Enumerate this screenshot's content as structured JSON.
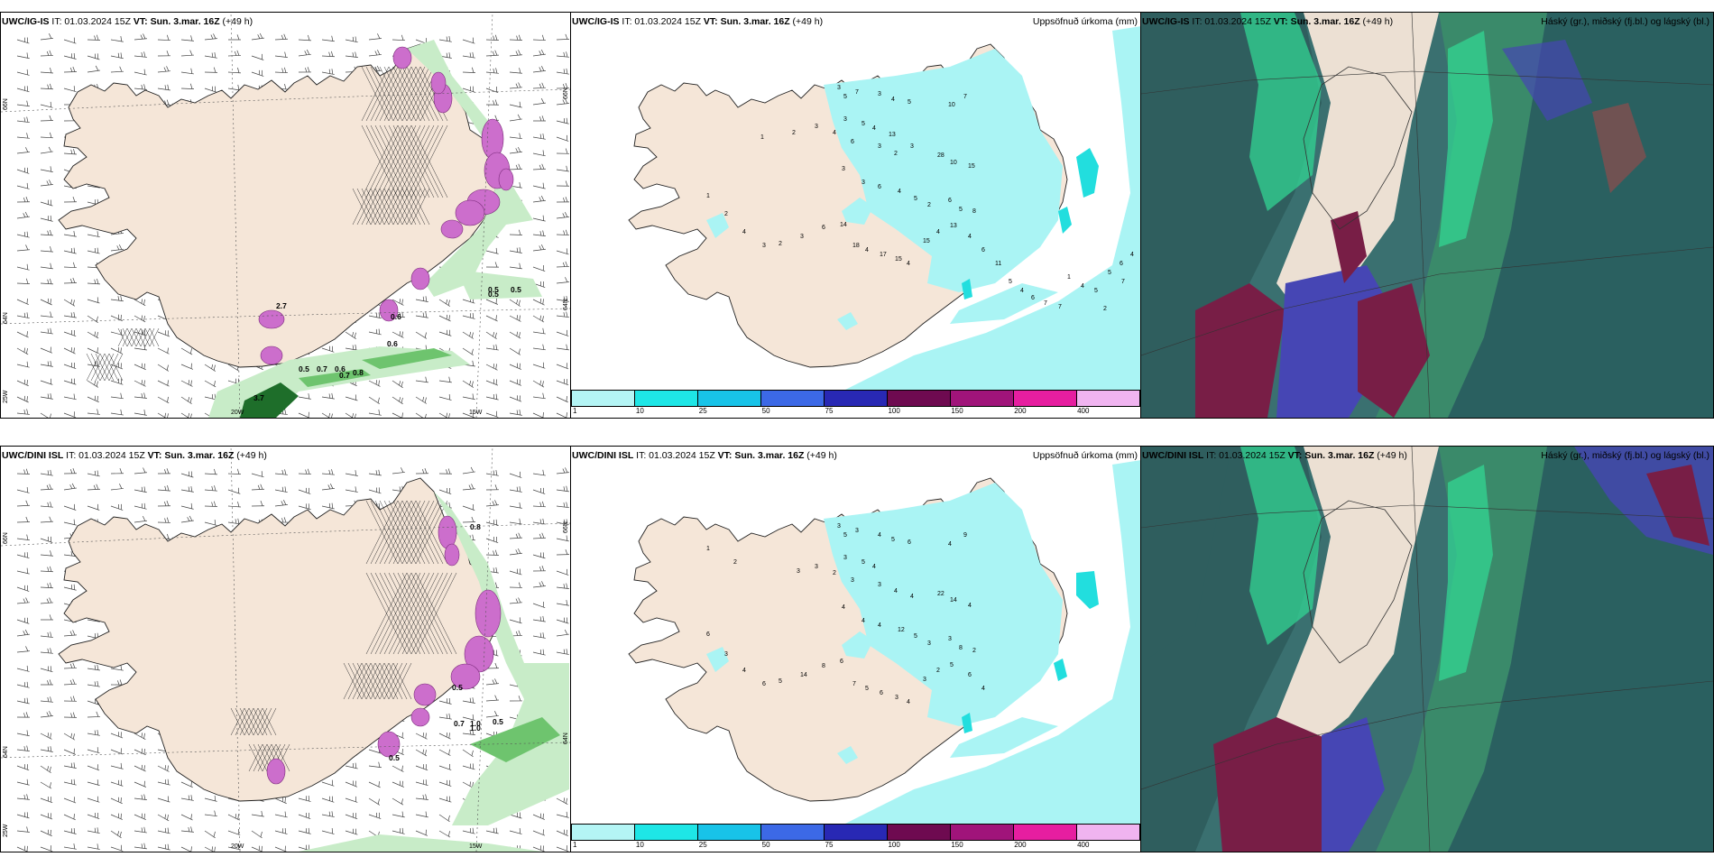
{
  "panels": [
    {
      "model": "UWC/IG-IS",
      "it": "IT: 01.03.2024 15Z",
      "vt_label": "VT: Sun. 3.mar. 16Z",
      "lead": "(+49 h)",
      "right": ""
    },
    {
      "model": "UWC/IG-IS",
      "it": "IT: 01.03.2024 15Z",
      "vt_label": "VT: Sun. 3.mar. 16Z",
      "lead": "(+49 h)",
      "right": "Uppsöfnuð úrkoma (mm)"
    },
    {
      "model": "UWC/IG-IS",
      "it": "IT: 01.03.2024 15Z",
      "vt_label": "VT: Sun. 3.mar. 16Z",
      "lead": "(+49 h)",
      "right": "Háský (gr.), miðský (fj.bl.) og lágský (bl.)"
    },
    {
      "model": "UWC/DINI ISL",
      "it": "IT: 01.03.2024 15Z",
      "vt_label": "VT: Sun. 3.mar. 16Z",
      "lead": "(+49 h)",
      "right": ""
    },
    {
      "model": "UWC/DINI ISL",
      "it": "IT: 01.03.2024 15Z",
      "vt_label": "VT: Sun. 3.mar. 16Z",
      "lead": "(+49 h)",
      "right": "Uppsöfnuð úrkoma (mm)"
    },
    {
      "model": "UWC/DINI ISL",
      "it": "IT: 01.03.2024 15Z",
      "vt_label": "VT: Sun. 3.mar. 16Z",
      "lead": "(+49 h)",
      "right": "Háský (gr.), miðský (fj.bl.) og lágský (bl.)"
    }
  ],
  "axis_labels": {
    "lat_66": "66N",
    "lat_64": "64N",
    "lon_20w": "20W",
    "lon_15w": "15W",
    "lon_25w": "25W",
    "lat_66r": "66N",
    "lat_64r": "64N"
  },
  "colorbar": {
    "ticks": [
      "1",
      "10",
      "25",
      "50",
      "75",
      "100",
      "150",
      "200",
      "400"
    ],
    "colors": [
      "#b4f5f5",
      "#1ee6e6",
      "#18c3e8",
      "#3c69e6",
      "#2828b4",
      "#6e0a50",
      "#a0147a",
      "#e61ea0",
      "#f0b4f0"
    ]
  },
  "colors": {
    "land": "#f5e6d8",
    "precip": "#aaf4f4",
    "precip_heavy": "#22dede",
    "snow_light": "#c8ecc8",
    "snow_mid": "#6ec46e",
    "snow_dark": "#1e6e2a",
    "mixed": "#cc6ecc",
    "cloud_low": "#2e6464",
    "cloud_mid": "#4646b4",
    "cloud_high": "#32dc96",
    "cloud_dark": "#781e46"
  },
  "precip_labels_top": [
    "3",
    "5",
    "7",
    "3",
    "4",
    "5",
    "10",
    "7",
    "3",
    "5",
    "4",
    "13",
    "1",
    "2",
    "3",
    "4",
    "6",
    "3",
    "2",
    "3",
    "28",
    "10",
    "15",
    "3",
    "3",
    "6",
    "4",
    "5",
    "2",
    "6",
    "5",
    "8",
    "1",
    "2",
    "4",
    "3",
    "2",
    "3",
    "6",
    "14",
    "18",
    "4",
    "17",
    "15",
    "4",
    "15",
    "4",
    "13",
    "4",
    "6",
    "11",
    "5",
    "4",
    "6",
    "7",
    "7",
    "1",
    "4",
    "5",
    "5",
    "6",
    "4",
    "7",
    "2"
  ],
  "precip_labels_bottom": [
    "3",
    "5",
    "3",
    "4",
    "5",
    "6",
    "4",
    "9",
    "3",
    "5",
    "4",
    "1",
    "2",
    "3",
    "3",
    "2",
    "3",
    "3",
    "4",
    "4",
    "22",
    "14",
    "4",
    "4",
    "4",
    "4",
    "12",
    "5",
    "3",
    "3",
    "8",
    "2",
    "6",
    "3",
    "4",
    "6",
    "5",
    "14",
    "8",
    "6",
    "7",
    "5",
    "6",
    "3",
    "4",
    "3",
    "2",
    "5",
    "6",
    "4"
  ],
  "snow_labels_top": [
    "0.5",
    "0.5",
    "0.5",
    "0.6",
    "0.6",
    "0.5",
    "0.7",
    "0.6",
    "0.7",
    "0.8",
    "3.7",
    "2.7"
  ],
  "snow_labels_bottom": [
    "0.8",
    "0.5",
    "0.7",
    "1.0",
    "0.5",
    "1.0",
    "0.5"
  ]
}
